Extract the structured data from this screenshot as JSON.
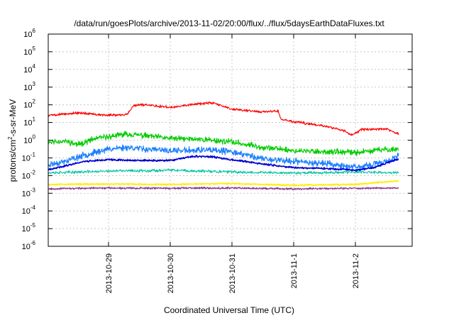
{
  "chart_data": {
    "type": "line",
    "title": "/data/run/goesPlots/archive/2013-11-02/20:00/flux/../flux/5daysEarthDataFluxes.txt",
    "xlabel": "Coordinated Universal Time (UTC)",
    "ylabel_base": "protons/cm",
    "ylabel_sup": "2",
    "ylabel_rest": "-s-sr-MeV",
    "x_unit": "days since 2013-10-28 00:00 UTC",
    "xlim": [
      0.0,
      5.0
    ],
    "y_scale": "log",
    "ylim_exp": [
      -6,
      6
    ],
    "grid": true,
    "x_ticks": [
      {
        "x": 1.0,
        "label": "2013-10-29"
      },
      {
        "x": 2.0,
        "label": "2013-10-30"
      },
      {
        "x": 3.0,
        "label": "2013-10-31"
      },
      {
        "x": 4.0,
        "label": "2013-11-1"
      },
      {
        "x": 5.0,
        "label": "2013-11-2"
      }
    ],
    "y_ticks": [
      {
        "exp": 6,
        "base": "10",
        "sup": "6"
      },
      {
        "exp": 5,
        "base": "10",
        "sup": "5"
      },
      {
        "exp": 4,
        "base": "10",
        "sup": "4"
      },
      {
        "exp": 3,
        "base": "10",
        "sup": "3"
      },
      {
        "exp": 2,
        "base": "10",
        "sup": "2"
      },
      {
        "exp": 1,
        "base": "10",
        "sup": "1"
      },
      {
        "exp": 0,
        "base": "10",
        "sup": "0"
      },
      {
        "exp": -1,
        "base": "10",
        "sup": "-1"
      },
      {
        "exp": -2,
        "base": "10",
        "sup": "-2"
      },
      {
        "exp": -3,
        "base": "10",
        "sup": "-3"
      },
      {
        "exp": -4,
        "base": "10",
        "sup": "-4"
      },
      {
        "exp": -5,
        "base": "10",
        "sup": "-5"
      },
      {
        "exp": -6,
        "base": "10",
        "sup": "-6"
      }
    ],
    "series": [
      {
        "color": "#00cc00",
        "noise": 0.2,
        "seed": 11,
        "width": 1.1,
        "points": [
          [
            0,
            -0.1
          ],
          [
            0.3,
            -0.05
          ],
          [
            0.5,
            -0.25
          ],
          [
            0.8,
            0.1
          ],
          [
            1.0,
            0.2
          ],
          [
            1.3,
            0.35
          ],
          [
            1.6,
            0.25
          ],
          [
            2.0,
            0.1
          ],
          [
            2.5,
            0.05
          ],
          [
            3.0,
            -0.1
          ],
          [
            3.5,
            -0.4
          ],
          [
            3.8,
            -0.5
          ],
          [
            4.0,
            -0.6
          ],
          [
            4.5,
            -0.65
          ],
          [
            5.0,
            -0.7
          ],
          [
            5.4,
            -0.55
          ],
          [
            5.7,
            -0.5
          ]
        ]
      },
      {
        "color": "#1a7fff",
        "noise": 0.22,
        "seed": 23,
        "width": 1.1,
        "points": [
          [
            0,
            -1.4
          ],
          [
            0.3,
            -1.2
          ],
          [
            0.6,
            -0.85
          ],
          [
            1.0,
            -0.5
          ],
          [
            1.3,
            -0.4
          ],
          [
            1.6,
            -0.5
          ],
          [
            2.0,
            -0.6
          ],
          [
            2.5,
            -0.55
          ],
          [
            3.0,
            -0.65
          ],
          [
            3.5,
            -1.05
          ],
          [
            4.0,
            -1.2
          ],
          [
            4.5,
            -1.3
          ],
          [
            5.0,
            -1.55
          ],
          [
            5.4,
            -1.3
          ],
          [
            5.7,
            -0.9
          ]
        ]
      },
      {
        "color": "#ff0000",
        "noise": 0.09,
        "seed": 5,
        "width": 1.1,
        "points": [
          [
            0,
            1.4
          ],
          [
            0.5,
            1.55
          ],
          [
            1.0,
            1.4
          ],
          [
            1.3,
            1.45
          ],
          [
            1.4,
            1.95
          ],
          [
            1.6,
            2.0
          ],
          [
            2.0,
            1.85
          ],
          [
            2.4,
            2.05
          ],
          [
            2.7,
            2.1
          ],
          [
            3.0,
            1.75
          ],
          [
            3.5,
            1.6
          ],
          [
            3.75,
            1.65
          ],
          [
            3.8,
            1.15
          ],
          [
            4.1,
            1.0
          ],
          [
            4.5,
            0.8
          ],
          [
            4.8,
            0.55
          ],
          [
            4.95,
            0.3
          ],
          [
            5.1,
            0.6
          ],
          [
            5.5,
            0.65
          ],
          [
            5.7,
            0.35
          ]
        ]
      },
      {
        "color": "#00c4a0",
        "noise": 0.1,
        "seed": 37,
        "width": 1.0,
        "points": [
          [
            0,
            -1.85
          ],
          [
            0.5,
            -1.8
          ],
          [
            1.0,
            -1.75
          ],
          [
            2.0,
            -1.7
          ],
          [
            3.0,
            -1.8
          ],
          [
            4.0,
            -1.85
          ],
          [
            5.0,
            -1.8
          ],
          [
            5.7,
            -1.85
          ]
        ]
      },
      {
        "color": "#0000d4",
        "noise": 0.06,
        "seed": 41,
        "width": 1.6,
        "points": [
          [
            0,
            -1.7
          ],
          [
            0.3,
            -1.45
          ],
          [
            0.6,
            -1.2
          ],
          [
            1.0,
            -1.1
          ],
          [
            1.5,
            -1.15
          ],
          [
            2.0,
            -1.15
          ],
          [
            2.4,
            -0.9
          ],
          [
            2.7,
            -0.95
          ],
          [
            3.0,
            -1.1
          ],
          [
            3.5,
            -1.35
          ],
          [
            4.0,
            -1.55
          ],
          [
            4.5,
            -1.6
          ],
          [
            5.0,
            -1.7
          ],
          [
            5.3,
            -1.55
          ],
          [
            5.7,
            -1.05
          ]
        ]
      },
      {
        "color": "#ffee00",
        "noise": 0.05,
        "seed": 53,
        "width": 1.6,
        "points": [
          [
            0,
            -2.5
          ],
          [
            1.0,
            -2.48
          ],
          [
            2.0,
            -2.5
          ],
          [
            3.0,
            -2.45
          ],
          [
            4.0,
            -2.55
          ],
          [
            5.0,
            -2.5
          ],
          [
            5.7,
            -2.3
          ]
        ]
      },
      {
        "color": "#8b3a8b",
        "noise": 0.06,
        "seed": 67,
        "width": 1.3,
        "points": [
          [
            0,
            -2.75
          ],
          [
            1.0,
            -2.7
          ],
          [
            2.0,
            -2.72
          ],
          [
            3.0,
            -2.7
          ],
          [
            4.0,
            -2.75
          ],
          [
            5.0,
            -2.72
          ],
          [
            5.7,
            -2.7
          ]
        ]
      }
    ]
  }
}
